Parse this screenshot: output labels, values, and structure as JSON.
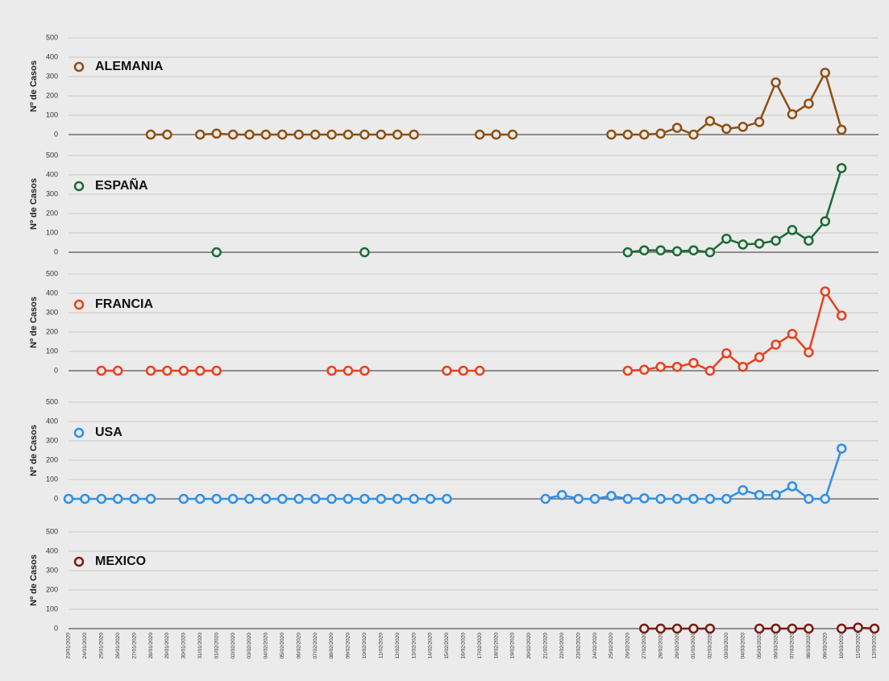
{
  "chart_data": [
    {
      "type": "line",
      "y_label": "Nº de Casos",
      "ylim": [
        0,
        500
      ],
      "yticks": [
        0,
        100,
        200,
        300,
        400,
        500
      ],
      "series": [
        {
          "name": "ALEMANIA",
          "color": "#8f4f12",
          "values": [
            null,
            null,
            null,
            null,
            null,
            0,
            0,
            null,
            0,
            5,
            0,
            0,
            0,
            0,
            0,
            0,
            0,
            0,
            0,
            0,
            0,
            0,
            null,
            null,
            null,
            0,
            0,
            0,
            null,
            null,
            null,
            null,
            null,
            0,
            0,
            0,
            5,
            35,
            0,
            70,
            30,
            40,
            65,
            270,
            105,
            160,
            320,
            25,
            null,
            null
          ]
        }
      ]
    },
    {
      "type": "line",
      "y_label": "Nº de Casos",
      "ylim": [
        0,
        500
      ],
      "yticks": [
        0,
        100,
        200,
        300,
        400,
        500
      ],
      "series": [
        {
          "name": "ESPAÑA",
          "color": "#1b6b36",
          "values": [
            null,
            null,
            null,
            null,
            null,
            null,
            null,
            null,
            null,
            0,
            null,
            null,
            null,
            null,
            null,
            null,
            null,
            null,
            0,
            null,
            null,
            null,
            null,
            null,
            null,
            null,
            null,
            null,
            null,
            null,
            null,
            null,
            null,
            null,
            0,
            10,
            10,
            5,
            10,
            0,
            70,
            40,
            45,
            60,
            115,
            60,
            160,
            435,
            null,
            null
          ]
        }
      ]
    },
    {
      "type": "line",
      "y_label": "Nº de Casos",
      "ylim": [
        0,
        500
      ],
      "yticks": [
        0,
        100,
        200,
        300,
        400,
        500
      ],
      "series": [
        {
          "name": "FRANCIA",
          "color": "#e8401c",
          "values": [
            null,
            null,
            0,
            0,
            null,
            0,
            0,
            0,
            0,
            0,
            null,
            null,
            null,
            null,
            null,
            null,
            0,
            0,
            0,
            null,
            null,
            null,
            null,
            0,
            0,
            0,
            null,
            null,
            null,
            null,
            null,
            null,
            null,
            null,
            0,
            5,
            20,
            20,
            40,
            0,
            90,
            20,
            70,
            135,
            190,
            95,
            410,
            285,
            null,
            null
          ]
        }
      ]
    },
    {
      "type": "line",
      "y_label": "Nº de Casos",
      "ylim": [
        0,
        500
      ],
      "yticks": [
        0,
        100,
        200,
        300,
        400,
        500
      ],
      "series": [
        {
          "name": "USA",
          "color": "#2f8fe8",
          "values": [
            0,
            0,
            0,
            0,
            0,
            0,
            null,
            0,
            0,
            0,
            0,
            0,
            0,
            0,
            0,
            0,
            0,
            0,
            0,
            0,
            0,
            0,
            0,
            0,
            null,
            null,
            null,
            null,
            null,
            0,
            20,
            0,
            0,
            15,
            0,
            3,
            0,
            0,
            0,
            0,
            0,
            45,
            20,
            20,
            65,
            0,
            0,
            260,
            null,
            null
          ]
        }
      ]
    },
    {
      "type": "line",
      "y_label": "Nº de Casos",
      "ylim": [
        0,
        500
      ],
      "yticks": [
        0,
        100,
        200,
        300,
        400,
        500
      ],
      "categories": [
        "23/01/2020",
        "24/01/2020",
        "25/01/2020",
        "26/01/2020",
        "27/01/2020",
        "28/01/2020",
        "29/01/2020",
        "30/01/2020",
        "31/01/2020",
        "01/02/2020",
        "02/02/2020",
        "03/02/2020",
        "04/02/2020",
        "05/02/2020",
        "06/02/2020",
        "07/02/2020",
        "08/02/2020",
        "09/02/2020",
        "10/02/2020",
        "11/02/2020",
        "12/02/2020",
        "13/02/2020",
        "14/02/2020",
        "15/02/2020",
        "16/02/2020",
        "17/02/2020",
        "18/02/2020",
        "19/02/2020",
        "20/02/2020",
        "21/02/2020",
        "22/02/2020",
        "23/02/2020",
        "24/02/2020",
        "25/02/2020",
        "26/02/2020",
        "27/02/2020",
        "28/02/2020",
        "29/02/2020",
        "01/03/2020",
        "02/03/2020",
        "03/03/2020",
        "04/03/2020",
        "05/03/2020",
        "06/03/2020",
        "07/03/2020",
        "08/03/2020",
        "09/03/2020",
        "10/03/2020",
        "11/03/2020",
        "12/03/2020"
      ],
      "series": [
        {
          "name": "MEXICO",
          "color": "#7a1a12",
          "values": [
            null,
            null,
            null,
            null,
            null,
            null,
            null,
            null,
            null,
            null,
            null,
            null,
            null,
            null,
            null,
            null,
            null,
            null,
            null,
            null,
            null,
            null,
            null,
            null,
            null,
            null,
            null,
            null,
            null,
            null,
            null,
            null,
            null,
            null,
            null,
            0,
            0,
            0,
            0,
            0,
            null,
            null,
            0,
            0,
            0,
            0,
            null,
            0,
            5,
            0
          ]
        }
      ]
    }
  ]
}
